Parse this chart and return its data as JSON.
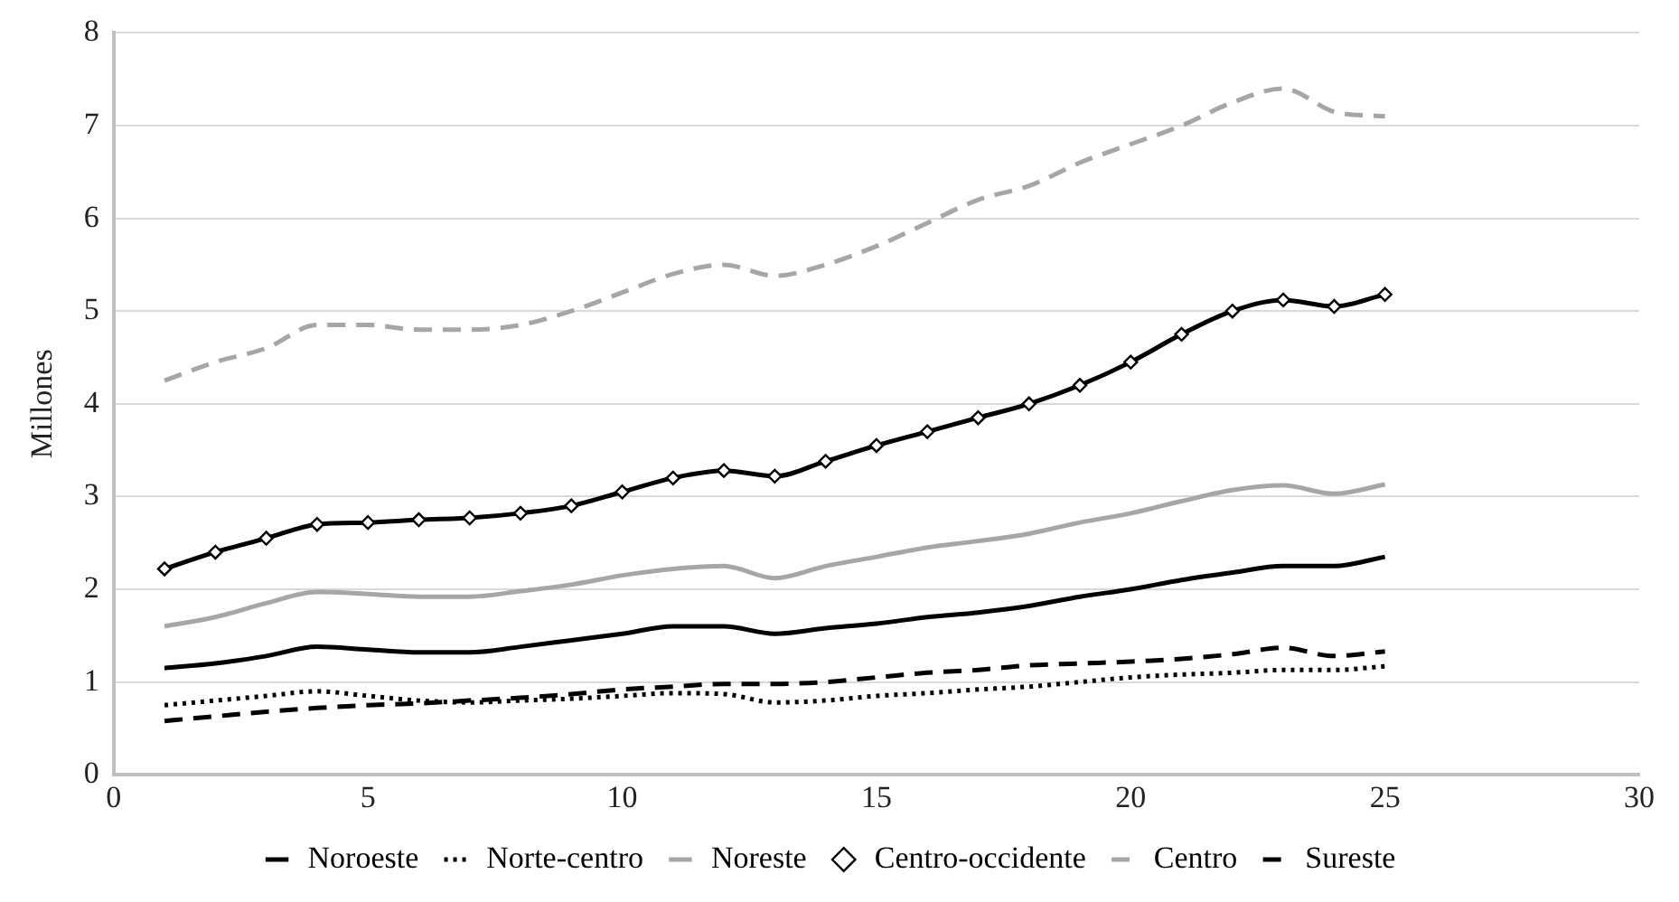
{
  "chart_data": {
    "type": "line",
    "ylabel": "Millones",
    "x": [
      1,
      2,
      3,
      4,
      5,
      6,
      7,
      8,
      9,
      10,
      11,
      12,
      13,
      14,
      15,
      16,
      17,
      18,
      19,
      20,
      21,
      22,
      23,
      24,
      25
    ],
    "xlim": [
      0,
      30
    ],
    "xticks": [
      0,
      5,
      10,
      15,
      20,
      25,
      30
    ],
    "ylim": [
      0,
      8
    ],
    "yticks": [
      0,
      1,
      2,
      3,
      4,
      5,
      6,
      7,
      8
    ],
    "grid": "y",
    "legend": "bottom",
    "marker": "none",
    "series": [
      {
        "name": "Noroeste",
        "color": "#000000",
        "line_style": "solid",
        "values": [
          1.15,
          1.2,
          1.28,
          1.38,
          1.35,
          1.32,
          1.32,
          1.38,
          1.45,
          1.52,
          1.6,
          1.6,
          1.52,
          1.58,
          1.63,
          1.7,
          1.75,
          1.82,
          1.92,
          2.0,
          2.1,
          2.18,
          2.25,
          2.25,
          2.35
        ]
      },
      {
        "name": "Norte-centro",
        "color": "#000000",
        "line_style": "dotted",
        "values": [
          0.75,
          0.8,
          0.85,
          0.9,
          0.85,
          0.8,
          0.78,
          0.8,
          0.82,
          0.85,
          0.88,
          0.87,
          0.78,
          0.8,
          0.85,
          0.88,
          0.92,
          0.95,
          1.0,
          1.05,
          1.08,
          1.1,
          1.13,
          1.13,
          1.17
        ]
      },
      {
        "name": "Noreste",
        "color": "#a6a6a6",
        "line_style": "solid",
        "values": [
          1.6,
          1.7,
          1.85,
          1.97,
          1.95,
          1.92,
          1.92,
          1.98,
          2.05,
          2.15,
          2.22,
          2.25,
          2.12,
          2.25,
          2.35,
          2.45,
          2.52,
          2.6,
          2.72,
          2.82,
          2.95,
          3.07,
          3.12,
          3.03,
          3.13
        ]
      },
      {
        "name": "Centro-occidente",
        "color": "#000000",
        "line_style": "solid",
        "marker": "diamond",
        "values": [
          2.22,
          2.4,
          2.55,
          2.7,
          2.72,
          2.75,
          2.77,
          2.82,
          2.9,
          3.05,
          3.2,
          3.28,
          3.22,
          3.38,
          3.55,
          3.7,
          3.85,
          4.0,
          4.2,
          4.45,
          4.75,
          5.0,
          5.12,
          5.05,
          5.18
        ]
      },
      {
        "name": "Centro",
        "color": "#a6a6a6",
        "line_style": "dashed",
        "values": [
          4.25,
          4.45,
          4.6,
          4.85,
          4.85,
          4.8,
          4.8,
          4.85,
          5.0,
          5.2,
          5.4,
          5.5,
          5.38,
          5.5,
          5.7,
          5.95,
          6.2,
          6.35,
          6.6,
          6.8,
          7.0,
          7.25,
          7.4,
          7.15,
          7.1
        ]
      },
      {
        "name": "Sureste",
        "color": "#000000",
        "line_style": "dashed",
        "values": [
          0.58,
          0.63,
          0.68,
          0.72,
          0.75,
          0.77,
          0.8,
          0.83,
          0.87,
          0.92,
          0.95,
          0.98,
          0.98,
          1.0,
          1.05,
          1.1,
          1.13,
          1.18,
          1.2,
          1.22,
          1.25,
          1.3,
          1.37,
          1.28,
          1.33
        ]
      }
    ]
  }
}
